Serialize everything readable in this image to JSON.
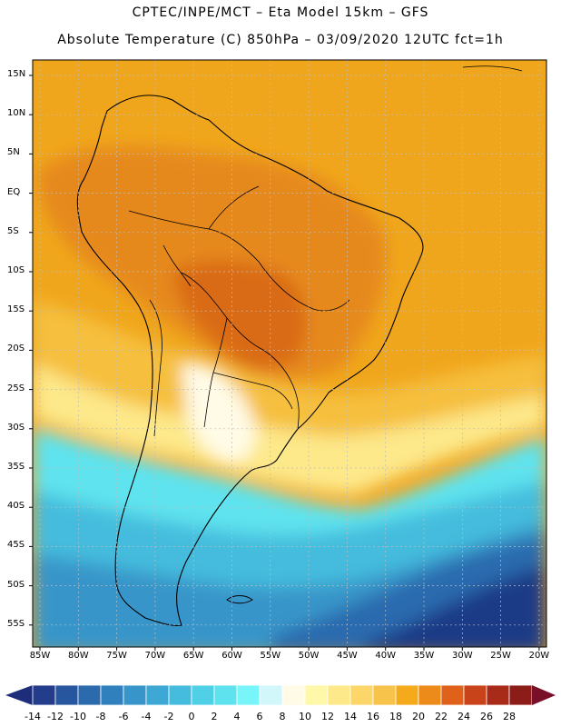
{
  "header": {
    "title_line1": "CPTEC/INPE/MCT –  Eta Model 15km – GFS",
    "title_line2": "Absolute Temperature (C) 850hPa – 03/09/2020 12UTC fct=1h"
  },
  "axes": {
    "lat_labels": [
      "15N",
      "10N",
      "5N",
      "EQ",
      "5S",
      "10S",
      "15S",
      "20S",
      "25S",
      "30S",
      "35S",
      "40S",
      "45S",
      "50S",
      "55S"
    ],
    "lon_labels": [
      "85W",
      "80W",
      "75W",
      "70W",
      "65W",
      "60W",
      "55W",
      "50W",
      "45W",
      "40W",
      "35W",
      "30W",
      "25W",
      "20W"
    ]
  },
  "colorbar": {
    "labels": [
      "-14",
      "-12",
      "-10",
      "-8",
      "-6",
      "-4",
      "-2",
      "0",
      "2",
      "4",
      "6",
      "8",
      "10",
      "12",
      "14",
      "16",
      "18",
      "20",
      "22",
      "24",
      "26",
      "28"
    ],
    "under_color": "#1e2d7a",
    "over_color": "#7a0f28",
    "colors": [
      "#233c8c",
      "#27559e",
      "#2c6aae",
      "#3180be",
      "#3895c9",
      "#3ea8d4",
      "#45bcdd",
      "#4fd0e6",
      "#5ee3ee",
      "#78f5f8",
      "#d2f7fa",
      "#fffbe6",
      "#fff8a8",
      "#fee98a",
      "#fdd66a",
      "#f8c34a",
      "#f4aa1a",
      "#ec8a1a",
      "#e0621a",
      "#c8421a",
      "#a82a18",
      "#8c1c18"
    ]
  },
  "field_colors": {
    "tropical": "#f0a61c",
    "warm": "#e6891c",
    "hot": "#d96b18",
    "subtropical": "#f6bf3c",
    "mild": "#fde88a",
    "cool": "#fffbe6",
    "cold1": "#5ee3ee",
    "cold2": "#45bcdd",
    "cold3": "#3895c9",
    "cold4": "#2c6aae",
    "cold5": "#1e3b86"
  }
}
